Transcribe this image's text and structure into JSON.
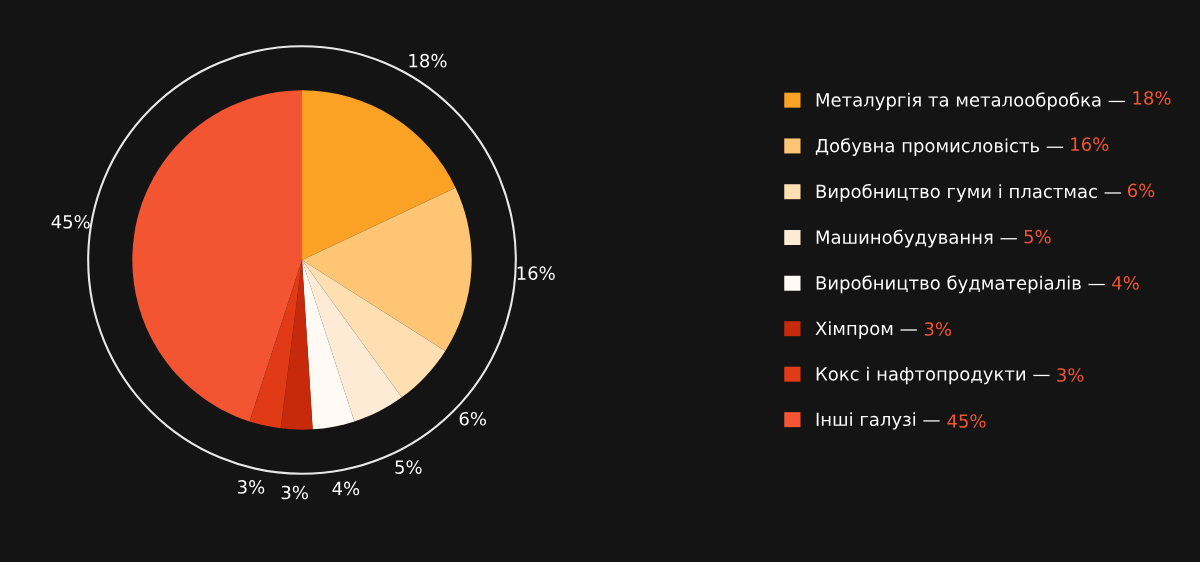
{
  "chart_data": {
    "type": "pie",
    "categories": [
      "Металургія та металообробка —",
      "Добувна промисловість —",
      "Виробництво гуми і пластмас —",
      "Машинобудування —",
      "Виробництво будматеріалів —",
      "Хімпром —",
      "Кокс і нафтопродукти —",
      "Інші галузі —"
    ],
    "values": [
      18,
      16,
      6,
      5,
      4,
      3,
      3,
      45
    ],
    "value_labels": [
      "18%",
      "16%",
      "6%",
      "5%",
      "4%",
      "3%",
      "3%",
      "45%"
    ],
    "colors": [
      "#fba225",
      "#fdc574",
      "#fddfb2",
      "#feebd5",
      "#fffaf3",
      "#c62a0b",
      "#e03a16",
      "#f35431"
    ],
    "legend": "right"
  }
}
